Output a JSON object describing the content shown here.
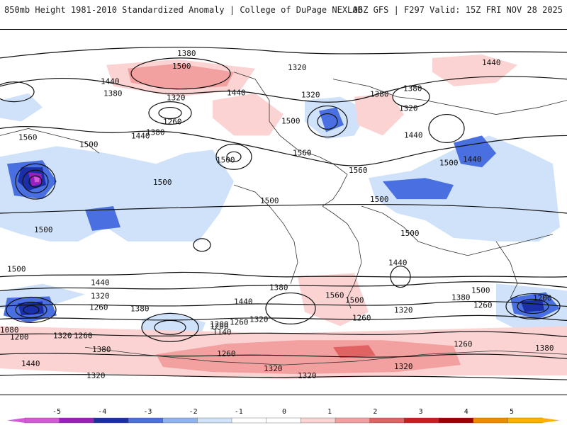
{
  "header": {
    "title_left": "850mb Height 1981-2010 Standardized Anomaly | College of DuPage NEXLAB",
    "title_right": "06Z GFS | F297 Valid: 15Z FRI NOV 28 2025"
  },
  "colorbar": {
    "ticks": [
      "-5",
      "-4",
      "-3",
      "-2",
      "-1",
      "0",
      "1",
      "2",
      "3",
      "4",
      "5"
    ],
    "colors": [
      "#d25ad6",
      "#9a1fbf",
      "#1b2fa8",
      "#4a6fe0",
      "#8fb4f0",
      "#cfe2fa",
      "#ffffff",
      "#ffffff",
      "#fbd3d3",
      "#f2a0a0",
      "#e06262",
      "#c81e1e",
      "#9c0000",
      "#f08a00",
      "#ffb000"
    ]
  },
  "contour_labels": [
    "1380",
    "1500",
    "1440",
    "1380",
    "1320",
    "1260",
    "1380",
    "1440",
    "1500",
    "1560",
    "1500",
    "1440",
    "1320",
    "1380",
    "1320",
    "1440",
    "1500",
    "1560",
    "1500",
    "1560",
    "1440",
    "1380",
    "1320",
    "1500",
    "1440",
    "1500",
    "1500",
    "1500",
    "1500",
    "1500",
    "1440",
    "1320",
    "1260",
    "1380",
    "1440",
    "1380",
    "1320",
    "1260",
    "1200",
    "1140",
    "1260",
    "1200",
    "1080",
    "1200",
    "1320",
    "1260",
    "1380",
    "1440",
    "1320",
    "1260",
    "1320",
    "1560",
    "1500",
    "1440",
    "1500",
    "1380",
    "1260",
    "1320",
    "1200",
    "1260",
    "1380",
    "1320",
    "1320"
  ]
}
